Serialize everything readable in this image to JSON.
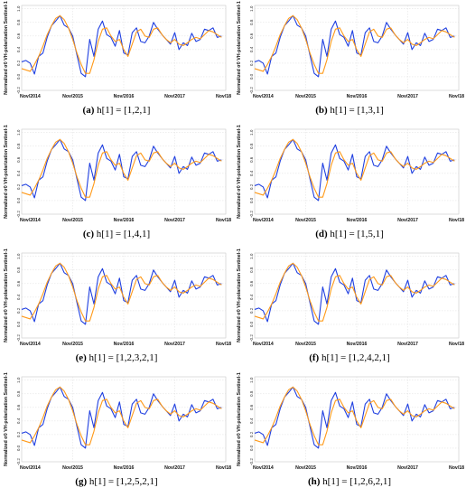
{
  "figure": {
    "ylabel": "Normalized σ0 VH-polarization Sentinel-1",
    "x_tick_labels": [
      "Nov/2014",
      "Nov/2015",
      "Nov/2016",
      "Nov/2017",
      "Nov/18"
    ],
    "y_tick_labels": [
      "-0.2",
      "0.0",
      "0.2",
      "0.4",
      "0.6",
      "0.8",
      "1.0"
    ],
    "colors": {
      "observed": "#1f3fe0",
      "predicted": "#ff9a1a",
      "grid": "#dddddd",
      "axis": "#555555"
    }
  },
  "panels": [
    {
      "letter": "(a)",
      "caption": "h[1] = [1,2,1]"
    },
    {
      "letter": "(b)",
      "caption": "h[1] = [1,3,1]"
    },
    {
      "letter": "(c)",
      "caption": "h[1] = [1,4,1]"
    },
    {
      "letter": "(d)",
      "caption": "h[1] = [1,5,1]"
    },
    {
      "letter": "(e)",
      "caption": "h[1] = [1,2,3,2,1]"
    },
    {
      "letter": "(f)",
      "caption": "h[1] = [1,2,4,2,1]"
    },
    {
      "letter": "(g)",
      "caption": "h[1] = [1,2,5,2,1]"
    },
    {
      "letter": "(h)",
      "caption": "h[1] = [1,2,6,2,1]"
    }
  ],
  "chart_data": {
    "type": "line",
    "x_unit": "months since Nov/2014",
    "x": [
      0,
      1,
      2,
      3,
      4,
      5,
      6,
      7,
      8,
      9,
      10,
      11,
      12,
      13,
      14,
      15,
      16,
      17,
      18,
      19,
      20,
      21,
      22,
      23,
      24,
      25,
      26,
      27,
      28,
      29,
      30,
      31,
      32,
      33,
      34,
      35,
      36,
      37,
      38,
      39,
      40,
      41,
      42,
      43,
      44,
      45,
      46,
      47
    ],
    "xlim": [
      0,
      48
    ],
    "ylim": [
      -0.2,
      1.05
    ],
    "xticks": [
      0,
      12,
      24,
      36,
      48
    ],
    "yticks": [
      -0.2,
      0.0,
      0.2,
      0.4,
      0.6,
      0.8,
      1.0
    ],
    "grid": true,
    "legend": "none",
    "series": [
      {
        "color": "#1f3fe0",
        "values": [
          0.22,
          0.24,
          0.2,
          0.04,
          0.3,
          0.35,
          0.58,
          0.75,
          0.82,
          0.9,
          0.76,
          0.72,
          0.6,
          0.32,
          0.05,
          0.0,
          0.55,
          0.3,
          0.7,
          0.82,
          0.62,
          0.58,
          0.45,
          0.68,
          0.35,
          0.32,
          0.65,
          0.72,
          0.52,
          0.5,
          0.6,
          0.8,
          0.7,
          0.62,
          0.55,
          0.48,
          0.65,
          0.4,
          0.5,
          0.46,
          0.64,
          0.52,
          0.55,
          0.7,
          0.68,
          0.72,
          0.58,
          0.6
        ]
      },
      {
        "color": "#ff9a1a",
        "values": [
          0.12,
          0.1,
          0.08,
          0.18,
          0.3,
          0.45,
          0.62,
          0.75,
          0.86,
          0.9,
          0.84,
          0.72,
          0.55,
          0.35,
          0.18,
          0.05,
          0.05,
          0.25,
          0.52,
          0.7,
          0.72,
          0.6,
          0.52,
          0.55,
          0.4,
          0.3,
          0.48,
          0.66,
          0.7,
          0.6,
          0.58,
          0.7,
          0.72,
          0.62,
          0.55,
          0.5,
          0.55,
          0.48,
          0.46,
          0.5,
          0.55,
          0.58,
          0.56,
          0.62,
          0.68,
          0.66,
          0.62,
          0.58
        ]
      }
    ]
  }
}
